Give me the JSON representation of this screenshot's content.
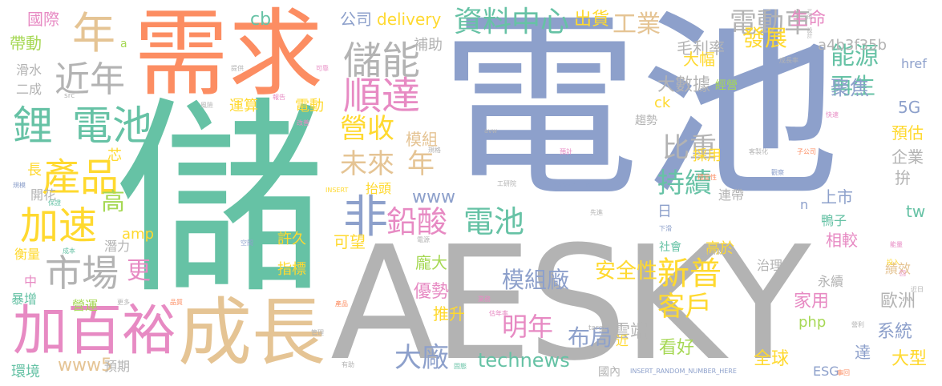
{
  "palette": {
    "green": "#66c2a5",
    "orange": "#fc8d62",
    "blue": "#8da0cb",
    "pink": "#e78ac3",
    "lime": "#a6d854",
    "yellow": "#ffd92f",
    "tan": "#e5c494",
    "gray": "#b3b3b3"
  },
  "words": [
    {
      "text": "電池",
      "color": "blue"
    },
    {
      "text": "儲",
      "color": "green"
    },
    {
      "text": "AESKY",
      "color": "gray"
    },
    {
      "text": "需求",
      "color": "orange"
    },
    {
      "text": "成長",
      "color": "tan"
    },
    {
      "text": "加百裕",
      "color": "pink"
    },
    {
      "text": "鋰",
      "color": "green"
    },
    {
      "text": "電池",
      "color": "green"
    },
    {
      "text": "儲能",
      "color": "gray"
    },
    {
      "text": "年",
      "color": "tan"
    },
    {
      "text": "近年",
      "color": "gray"
    },
    {
      "text": "順達",
      "color": "pink"
    },
    {
      "text": "產品",
      "color": "yellow"
    },
    {
      "text": "加速",
      "color": "yellow"
    },
    {
      "text": "市場",
      "color": "gray"
    },
    {
      "text": "非",
      "color": "blue"
    },
    {
      "text": "資料中心",
      "color": "green"
    },
    {
      "text": "電動車",
      "color": "gray"
    },
    {
      "text": "鉛酸",
      "color": "pink"
    },
    {
      "text": "電池",
      "color": "green"
    },
    {
      "text": "新普",
      "color": "yellow"
    },
    {
      "text": "客戶",
      "color": "yellow"
    },
    {
      "text": "營收",
      "color": "yellow"
    },
    {
      "text": "未來",
      "color": "tan"
    },
    {
      "text": "年",
      "color": "tan"
    },
    {
      "text": "比重",
      "color": "gray"
    },
    {
      "text": "持續",
      "color": "green"
    },
    {
      "text": "大廠",
      "color": "blue"
    },
    {
      "text": "明年",
      "color": "pink"
    },
    {
      "text": "工業",
      "color": "tan"
    },
    {
      "text": "公司",
      "color": "blue"
    },
    {
      "text": "delivery",
      "color": "yellow"
    },
    {
      "text": "出貨",
      "color": "yellow"
    },
    {
      "text": "發展",
      "color": "yellow"
    },
    {
      "text": "能源",
      "color": "green"
    },
    {
      "text": "再生",
      "color": "green"
    },
    {
      "text": "聚焦",
      "color": "blue"
    },
    {
      "text": "technews",
      "color": "green"
    },
    {
      "text": "模組廠",
      "color": "blue"
    },
    {
      "text": "安全性",
      "color": "yellow"
    },
    {
      "text": "布局",
      "color": "blue"
    },
    {
      "text": "更",
      "color": "pink"
    },
    {
      "text": "高",
      "color": "lime"
    },
    {
      "text": "www",
      "color": "blue"
    },
    {
      "text": "www5",
      "color": "tan"
    },
    {
      "text": "國際",
      "color": "pink"
    },
    {
      "text": "帶動",
      "color": "lime"
    },
    {
      "text": "cb",
      "color": "green"
    },
    {
      "text": "毛利率",
      "color": "gray"
    },
    {
      "text": "生命",
      "color": "pink"
    },
    {
      "text": "a4b3f35b",
      "color": "gray"
    },
    {
      "text": "大幅",
      "color": "yellow"
    },
    {
      "text": "大數據",
      "color": "gray"
    },
    {
      "text": "雲端",
      "color": "gray"
    },
    {
      "text": "看好",
      "color": "lime"
    },
    {
      "text": "全球",
      "color": "yellow"
    },
    {
      "text": "歐洲",
      "color": "gray"
    },
    {
      "text": "系統",
      "color": "blue"
    },
    {
      "text": "大型",
      "color": "yellow"
    },
    {
      "text": "家用",
      "color": "pink"
    },
    {
      "text": "相較",
      "color": "pink"
    },
    {
      "text": "模組",
      "color": "tan"
    },
    {
      "text": "可望",
      "color": "yellow"
    },
    {
      "text": "優勢",
      "color": "pink"
    },
    {
      "text": "龐大",
      "color": "lime"
    },
    {
      "text": "推升",
      "color": "yellow"
    },
    {
      "text": "上市",
      "color": "blue"
    },
    {
      "text": "tw",
      "color": "green"
    },
    {
      "text": "5G",
      "color": "blue"
    },
    {
      "text": "預估",
      "color": "yellow"
    },
    {
      "text": "企業",
      "color": "gray"
    },
    {
      "text": "拚",
      "color": "gray"
    },
    {
      "text": "採用",
      "color": "yellow"
    },
    {
      "text": "補助",
      "color": "gray"
    },
    {
      "text": "php",
      "color": "lime"
    },
    {
      "text": "高於",
      "color": "yellow"
    },
    {
      "text": "ESG",
      "color": "blue"
    },
    {
      "text": "href",
      "color": "blue"
    },
    {
      "text": "運算",
      "color": "yellow"
    },
    {
      "text": "電動",
      "color": "yellow"
    },
    {
      "text": "ck",
      "color": "yellow"
    },
    {
      "text": "芯",
      "color": "yellow"
    },
    {
      "text": "長",
      "color": "yellow"
    },
    {
      "text": "開花",
      "color": "gray"
    },
    {
      "text": "amp",
      "color": "yellow"
    },
    {
      "text": "潛力",
      "color": "gray"
    },
    {
      "text": "中",
      "color": "pink"
    },
    {
      "text": "衡量",
      "color": "yellow"
    },
    {
      "text": "暴增",
      "color": "green"
    },
    {
      "text": "營運",
      "color": "lime"
    },
    {
      "text": "環境",
      "color": "green"
    },
    {
      "text": "預期",
      "color": "gray"
    },
    {
      "text": "滑水",
      "color": "gray"
    },
    {
      "text": "二成",
      "color": "gray"
    },
    {
      "text": "國內",
      "color": "gray"
    },
    {
      "text": "許久",
      "color": "yellow"
    },
    {
      "text": "指標",
      "color": "yellow"
    },
    {
      "text": "抬頭",
      "color": "yellow"
    },
    {
      "text": "趨勢",
      "color": "gray"
    },
    {
      "text": "連帶",
      "color": "gray"
    },
    {
      "text": "鴨子",
      "color": "green"
    },
    {
      "text": "績效",
      "color": "tan"
    },
    {
      "text": "治理",
      "color": "gray"
    },
    {
      "text": "社會",
      "color": "green"
    },
    {
      "text": "永續",
      "color": "gray"
    },
    {
      "text": "經營",
      "color": "lime"
    },
    {
      "text": "近",
      "color": "yellow"
    },
    {
      "text": "達",
      "color": "blue"
    },
    {
      "text": "日",
      "color": "blue"
    },
    {
      "text": "n",
      "color": "blue"
    },
    {
      "text": "INSERT_RANDOM_NUMBER_HERE",
      "color": "blue"
    },
    {
      "text": "a",
      "color": "lime"
    },
    {
      "text": "src",
      "color": "gray"
    },
    {
      "text": "INSERT",
      "color": "yellow"
    },
    {
      "text": "zoneid",
      "color": "blue"
    },
    {
      "text": "img",
      "color": "blue"
    },
    {
      "text": "avw",
      "color": "gray"
    },
    {
      "text": "target",
      "color": "gray"
    },
    {
      "text": "_blank",
      "color": "gray"
    },
    {
      "text": "三成",
      "color": "gray"
    },
    {
      "text": "設計",
      "color": "gray"
    },
    {
      "text": "提供",
      "color": "gray"
    },
    {
      "text": "報告",
      "color": "pink"
    },
    {
      "text": "可靠",
      "color": "pink"
    },
    {
      "text": "風險",
      "color": "gray"
    },
    {
      "text": "改善",
      "color": "pink"
    },
    {
      "text": "規格",
      "color": "gray"
    },
    {
      "text": "工研院",
      "color": "gray"
    },
    {
      "text": "預計",
      "color": "pink"
    },
    {
      "text": "客製化",
      "color": "gray"
    },
    {
      "text": "子公司",
      "color": "orange"
    },
    {
      "text": "觀察",
      "color": "blue"
    },
    {
      "text": "成長率",
      "color": "gray"
    },
    {
      "text": "快速",
      "color": "pink"
    },
    {
      "text": "穩定性",
      "color": "orange"
    },
    {
      "text": "下滑",
      "color": "blue"
    },
    {
      "text": "先進",
      "color": "gray"
    },
    {
      "text": "電源",
      "color": "gray"
    },
    {
      "text": "空間",
      "color": "blue"
    },
    {
      "text": "保證",
      "color": "green"
    },
    {
      "text": "規模",
      "color": "blue"
    },
    {
      "text": "成本",
      "color": "green"
    },
    {
      "text": "品質",
      "color": "orange"
    },
    {
      "text": "更多",
      "color": "gray"
    },
    {
      "text": "產品",
      "color": "orange"
    },
    {
      "text": "估年率",
      "color": "pink"
    },
    {
      "text": "業務",
      "color": "pink"
    },
    {
      "text": "固態",
      "color": "green"
    },
    {
      "text": "有助",
      "color": "gray"
    },
    {
      "text": "管理",
      "color": "gray"
    },
    {
      "text": "能量",
      "color": "pink"
    },
    {
      "text": "投入",
      "color": "yellow"
    },
    {
      "text": "回",
      "color": "pink"
    },
    {
      "text": "近日",
      "color": "gray"
    },
    {
      "text": "營利",
      "color": "gray"
    },
    {
      "text": "事回",
      "color": "orange"
    }
  ]
}
